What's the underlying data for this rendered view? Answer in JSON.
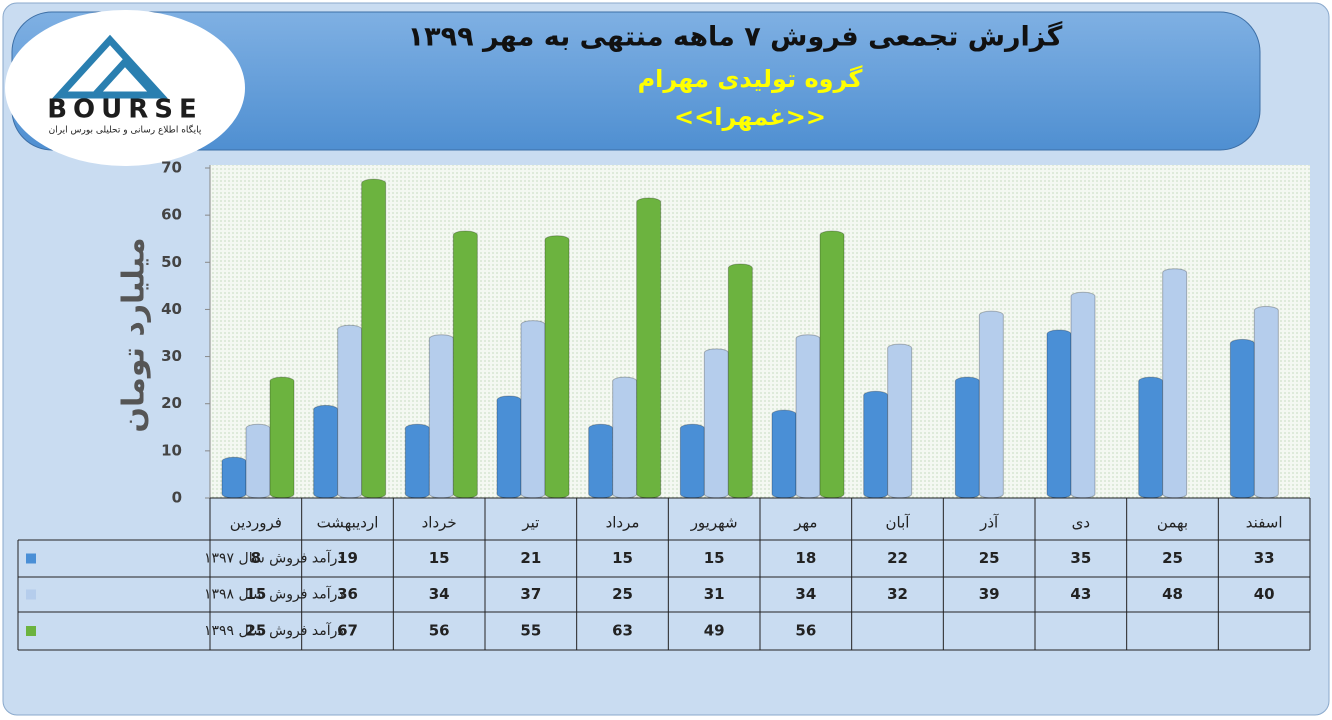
{
  "logo": {
    "name": "BOURSE",
    "tagline": "پایگاه اطلاع رسانی و تحلیلی بورس ایران"
  },
  "chart_data": {
    "type": "bar",
    "title": "گزارش تجمعی فروش ۷ ماهه منتهی به مهر ۱۳۹۹",
    "subtitle": "گروه تولیدی مهرام",
    "symbol": "<<غمهرا>>",
    "y_label": "میلیارد تومان",
    "categories": [
      "فروردین",
      "اردیبهشت",
      "خرداد",
      "تیر",
      "مرداد",
      "شهریور",
      "مهر",
      "آبان",
      "آذر",
      "دی",
      "بهمن",
      "اسفند"
    ],
    "series": [
      {
        "name": "درآمد فروش سال ۱۳۹۷",
        "color": "#4a8fd6",
        "values": [
          8,
          19,
          15,
          21,
          15,
          15,
          18,
          22,
          25,
          35,
          25,
          33
        ]
      },
      {
        "name": "درآمد فروش سال ۱۳۹۸",
        "color": "#b5cdec",
        "values": [
          15,
          36,
          34,
          37,
          25,
          31,
          34,
          32,
          39,
          43,
          48,
          40
        ]
      },
      {
        "name": "درآمد فروش سال ۱۳۹۹",
        "color": "#6cb33f",
        "values": [
          25,
          67,
          56,
          55,
          63,
          49,
          56,
          null,
          null,
          null,
          null,
          null
        ]
      }
    ],
    "ylim": [
      0,
      70
    ],
    "yticks": [
      0,
      10,
      20,
      30,
      40,
      50,
      60,
      70
    ]
  }
}
